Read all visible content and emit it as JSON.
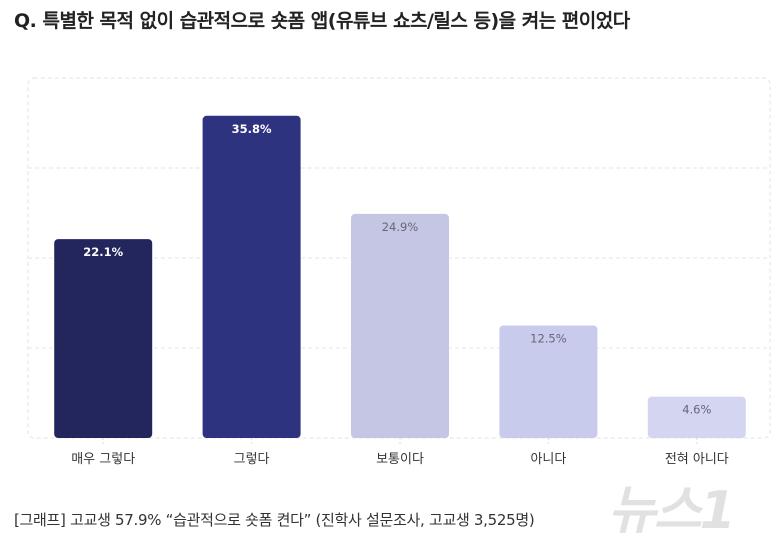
{
  "chart_data": {
    "type": "bar",
    "title": "Q. 특별한 목적 없이 습관적으로 숏폼 앱(유튜브 쇼츠/릴스 등)을 켜는 편이었다",
    "categories": [
      "매우 그렇다",
      "그렇다",
      "보통이다",
      "아니다",
      "전혀 아니다"
    ],
    "values": [
      22.1,
      35.8,
      24.9,
      12.5,
      4.6
    ],
    "data_labels": [
      "22.1%",
      "35.8%",
      "24.9%",
      "12.5%",
      "4.6%"
    ],
    "colors": [
      "#23265c",
      "#2e3380",
      "#c5c6e3",
      "#c9cbec",
      "#d4d5f0"
    ],
    "label_colors": [
      "#ffffff",
      "#ffffff",
      "#666677",
      "#666677",
      "#666677"
    ],
    "xlabel": "",
    "ylabel": "",
    "ylim": [
      0,
      40
    ],
    "grid": true,
    "legend": "none"
  },
  "caption": "[그래프] 고교생 57.9% “습관적으로 숏폼 켠다” (진학사 설문조사, 고교생 3,525명)",
  "watermark": "뉴스1"
}
